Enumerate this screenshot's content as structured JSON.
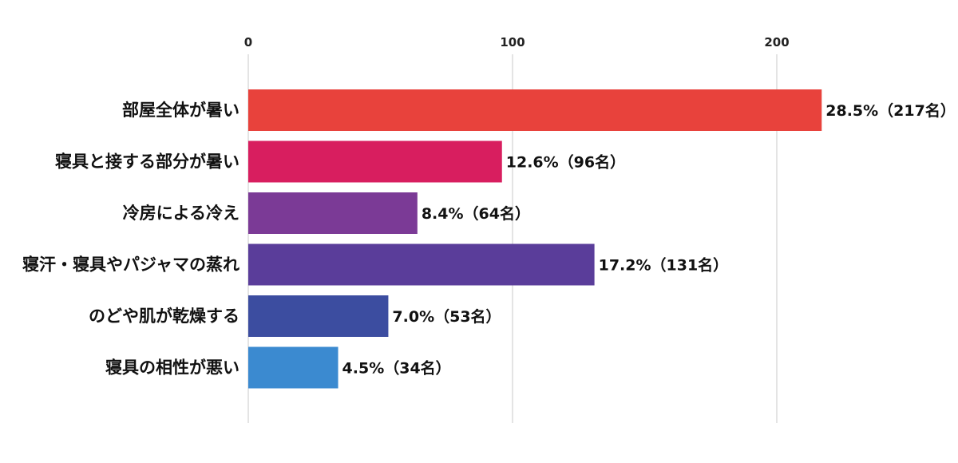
{
  "chart_data": {
    "type": "bar",
    "orientation": "horizontal",
    "xlim": [
      0,
      250
    ],
    "x_ticks": [
      0,
      100,
      200
    ],
    "x_tick_labels": [
      "0",
      "100",
      "200"
    ],
    "grid": true,
    "categories": [
      "部屋全体が暑い",
      "寝具と接する部分が暑い",
      "冷房による冷え",
      "寝汗・寝具やパジャマの蒸れ",
      "のどや肌が乾燥する",
      "寝具の相性が悪い"
    ],
    "values": [
      217,
      96,
      64,
      131,
      53,
      34
    ],
    "value_labels": [
      "28.5%（217名）",
      "12.6%（96名）",
      "8.4%（64名）",
      "17.2%（131名）",
      "7.0%（53名）",
      "4.5%（34名）"
    ],
    "colors": [
      "#e8423c",
      "#d81e5f",
      "#7b3a96",
      "#5a3d9a",
      "#3c4da0",
      "#3b8ad0"
    ]
  }
}
